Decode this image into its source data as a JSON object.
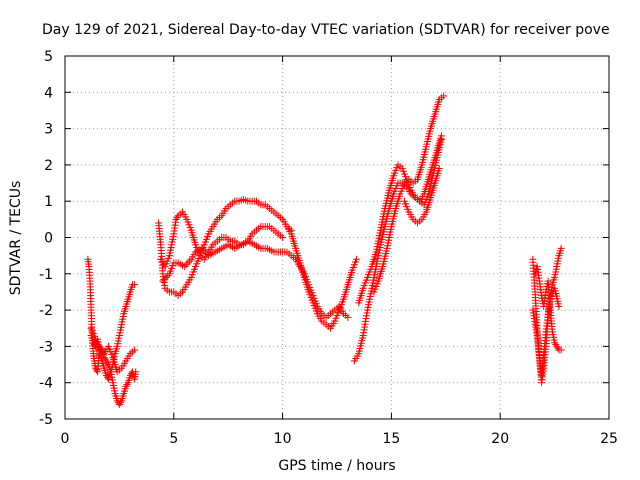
{
  "chart_data": {
    "type": "scatter",
    "title": "Day 129 of 2021, Sidereal Day-to-day VTEC variation (SDTVAR) for receiver pove",
    "xlabel": "GPS time / hours",
    "ylabel": "SDTVAR / TECUs",
    "xlim": [
      0,
      25
    ],
    "ylim": [
      -5,
      5
    ],
    "xticks": [
      "0",
      "5",
      "10",
      "15",
      "20",
      "25"
    ],
    "yticks": [
      "-5",
      "-4",
      "-3",
      "-2",
      "-1",
      "0",
      "1",
      "2",
      "3",
      "4",
      "5"
    ],
    "grid": true,
    "marker": "plus",
    "series_color": "#ff0000",
    "series": [
      {
        "x": [
          1.05,
          1.1,
          1.15,
          1.2,
          1.25,
          1.3,
          1.35,
          1.4,
          1.5,
          1.6,
          1.7,
          1.8,
          1.9,
          2.0,
          2.1,
          2.2,
          2.3,
          2.4,
          2.5,
          2.6,
          2.7,
          2.8,
          2.9,
          3.0,
          3.1,
          3.2,
          3.25
        ],
        "y": [
          -0.6,
          -0.8,
          -1.2,
          -2.0,
          -2.7,
          -3.2,
          -3.4,
          -3.6,
          -3.7,
          -3.0,
          -3.1,
          -3.3,
          -3.4,
          -3.5,
          -3.7,
          -4.0,
          -4.3,
          -4.5,
          -4.6,
          -4.5,
          -4.3,
          -4.1,
          -4.0,
          -3.8,
          -3.7,
          -3.9,
          -3.7
        ]
      },
      {
        "x": [
          1.2,
          1.3,
          1.4,
          1.5,
          1.6,
          1.7,
          1.8,
          1.9,
          2.0,
          2.1,
          2.2,
          2.3,
          2.4,
          2.5,
          2.6,
          2.7,
          2.8,
          2.9,
          3.0,
          3.1,
          3.2
        ],
        "y": [
          -2.7,
          -2.9,
          -3.0,
          -2.8,
          -3.2,
          -3.4,
          -3.6,
          -3.8,
          -3.9,
          -3.7,
          -3.5,
          -3.2,
          -3.0,
          -2.7,
          -2.4,
          -2.1,
          -1.9,
          -1.7,
          -1.5,
          -1.3,
          -1.3
        ]
      },
      {
        "x": [
          1.2,
          1.4,
          1.6,
          1.8,
          2.0,
          2.2,
          2.4,
          2.6,
          2.8,
          3.0,
          3.2
        ],
        "y": [
          -2.5,
          -2.8,
          -3.1,
          -3.2,
          -3.0,
          -3.3,
          -3.7,
          -3.6,
          -3.4,
          -3.2,
          -3.1
        ]
      },
      {
        "x": [
          4.3,
          4.4,
          4.5,
          4.6,
          4.8,
          5.0,
          5.2,
          5.4,
          5.6,
          5.8,
          6.0,
          6.2,
          6.4,
          6.6,
          6.8,
          7.0,
          7.2,
          7.4,
          7.6,
          7.8,
          8.0,
          8.2,
          8.4,
          8.6,
          8.8,
          9.0,
          9.2,
          9.4,
          9.6,
          9.8,
          10.0,
          10.2,
          10.4
        ],
        "y": [
          0.4,
          -0.2,
          -1.0,
          -1.4,
          -1.5,
          -1.5,
          -1.6,
          -1.5,
          -1.3,
          -1.1,
          -0.8,
          -0.5,
          -0.2,
          0.1,
          0.3,
          0.5,
          0.6,
          0.8,
          0.9,
          1.0,
          1.0,
          1.05,
          1.0,
          1.0,
          1.0,
          0.9,
          0.9,
          0.8,
          0.7,
          0.6,
          0.5,
          0.3,
          0.2
        ]
      },
      {
        "x": [
          4.4,
          4.6,
          4.8,
          5.0,
          5.1,
          5.2,
          5.4,
          5.6,
          5.8,
          6.0,
          6.2,
          6.4,
          6.6,
          6.8,
          7.0,
          7.2,
          7.4,
          7.6,
          7.8,
          8.0,
          8.2,
          8.4,
          8.6,
          8.8,
          9.0,
          9.2,
          9.4,
          9.6,
          9.8,
          10.0
        ],
        "y": [
          -0.6,
          -0.8,
          -0.5,
          0.1,
          0.5,
          0.6,
          0.7,
          0.5,
          0.2,
          -0.2,
          -0.5,
          -0.6,
          -0.4,
          -0.2,
          -0.1,
          0.0,
          0.0,
          -0.1,
          -0.1,
          -0.2,
          -0.2,
          -0.1,
          0.1,
          0.2,
          0.3,
          0.3,
          0.3,
          0.2,
          0.1,
          0.0
        ]
      },
      {
        "x": [
          4.5,
          4.8,
          5.0,
          5.2,
          5.5,
          5.8,
          6.0,
          6.3,
          6.6,
          6.9,
          7.2,
          7.5,
          7.8,
          8.1,
          8.4,
          8.7,
          9.0,
          9.3,
          9.6,
          9.9,
          10.2,
          10.4,
          10.6,
          10.8,
          11.0,
          11.2,
          11.4,
          11.6,
          11.8,
          12.0,
          12.2,
          12.4,
          12.6,
          12.8,
          13.0
        ],
        "y": [
          -1.2,
          -1.0,
          -0.7,
          -0.7,
          -0.8,
          -0.6,
          -0.4,
          -0.3,
          -0.5,
          -0.4,
          -0.3,
          -0.2,
          -0.3,
          -0.2,
          -0.1,
          -0.2,
          -0.3,
          -0.3,
          -0.4,
          -0.4,
          -0.4,
          -0.5,
          -0.6,
          -0.8,
          -1.0,
          -1.3,
          -1.6,
          -1.9,
          -2.1,
          -2.2,
          -2.1,
          -2.0,
          -1.9,
          -2.1,
          -2.2
        ]
      },
      {
        "x": [
          10.2,
          10.4,
          10.6,
          10.8,
          11.0,
          11.2,
          11.4,
          11.6,
          11.8,
          12.0,
          12.2,
          12.4,
          12.6,
          12.8,
          13.0,
          13.2,
          13.4
        ],
        "y": [
          0.3,
          0.1,
          -0.3,
          -0.7,
          -1.1,
          -1.5,
          -1.8,
          -2.1,
          -2.3,
          -2.4,
          -2.5,
          -2.3,
          -2.0,
          -1.7,
          -1.3,
          -0.9,
          -0.6
        ]
      },
      {
        "x": [
          13.3,
          13.5,
          13.7,
          13.9,
          14.1,
          14.3,
          14.5,
          14.7,
          14.9,
          15.1,
          15.3,
          15.5,
          15.7,
          15.9,
          16.1,
          16.3,
          16.5,
          16.7,
          16.9,
          17.1,
          17.3
        ],
        "y": [
          -3.4,
          -3.2,
          -2.7,
          -2.0,
          -1.4,
          -0.8,
          -0.2,
          0.3,
          0.8,
          1.2,
          1.5,
          1.5,
          1.4,
          1.2,
          1.1,
          1.0,
          0.9,
          1.2,
          1.7,
          2.2,
          2.7
        ]
      },
      {
        "x": [
          13.5,
          13.7,
          13.9,
          14.1,
          14.3,
          14.5,
          14.7,
          14.9,
          15.1,
          15.3,
          15.5,
          15.7,
          15.9,
          16.1,
          16.3,
          16.5,
          16.7,
          16.9,
          17.1,
          17.3
        ],
        "y": [
          -1.8,
          -1.4,
          -1.1,
          -0.8,
          -0.4,
          0.2,
          0.8,
          1.3,
          1.7,
          2.0,
          1.9,
          1.6,
          1.3,
          1.1,
          1.0,
          1.2,
          1.6,
          2.0,
          2.4,
          2.8
        ]
      },
      {
        "x": [
          14.2,
          14.4,
          14.6,
          14.8,
          15.0,
          15.2,
          15.4,
          15.6,
          15.8,
          16.0,
          16.2,
          16.4,
          16.6,
          16.8,
          17.0,
          17.2,
          17.4
        ],
        "y": [
          -1.5,
          -1.2,
          -0.8,
          -0.3,
          0.3,
          0.8,
          1.2,
          1.5,
          1.6,
          1.5,
          1.6,
          2.0,
          2.5,
          3.0,
          3.4,
          3.8,
          3.9
        ]
      },
      {
        "x": [
          15.6,
          15.8,
          16.0,
          16.2,
          16.4,
          16.6,
          16.8,
          17.0,
          17.2
        ],
        "y": [
          1.0,
          0.7,
          0.5,
          0.4,
          0.5,
          0.7,
          1.1,
          1.5,
          1.9
        ]
      },
      {
        "x": [
          21.5,
          21.6,
          21.7,
          21.8,
          21.9,
          22.0,
          22.1,
          22.2,
          22.3,
          22.4,
          22.5,
          22.6,
          22.7,
          22.8
        ],
        "y": [
          -0.6,
          -1.5,
          -2.5,
          -3.3,
          -4.0,
          -3.6,
          -3.0,
          -2.2,
          -1.6,
          -1.3,
          -1.1,
          -0.8,
          -0.5,
          -0.3
        ]
      },
      {
        "x": [
          21.6,
          21.7,
          21.8,
          21.9,
          22.0,
          22.1,
          22.2,
          22.3,
          22.4,
          22.5,
          22.6,
          22.7,
          22.8
        ],
        "y": [
          -1.0,
          -0.8,
          -1.2,
          -1.6,
          -1.9,
          -1.5,
          -1.2,
          -2.0,
          -2.6,
          -2.9,
          -3.0,
          -3.1,
          -3.1
        ]
      },
      {
        "x": [
          21.5,
          21.7,
          21.9,
          22.1,
          22.3,
          22.5,
          22.7
        ],
        "y": [
          -2.0,
          -2.7,
          -3.8,
          -2.6,
          -1.7,
          -1.4,
          -1.9
        ]
      }
    ]
  }
}
